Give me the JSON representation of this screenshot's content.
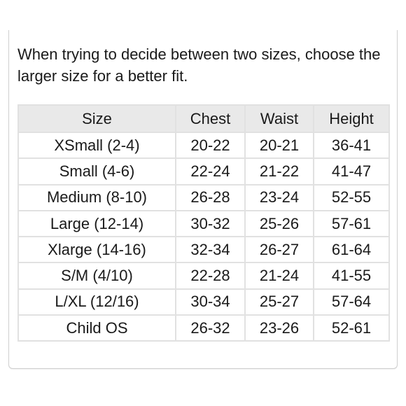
{
  "intro_text": "When trying to decide between two sizes, choose the larger size for a better fit.",
  "table": {
    "headers": [
      "Size",
      "Chest",
      "Waist",
      "Height"
    ],
    "rows": [
      [
        "XSmall (2-4)",
        "20-22",
        "20-21",
        "36-41"
      ],
      [
        "Small (4-6)",
        "22-24",
        "21-22",
        "41-47"
      ],
      [
        "Medium (8-10)",
        "26-28",
        "23-24",
        "52-55"
      ],
      [
        "Large (12-14)",
        "30-32",
        "25-26",
        "57-61"
      ],
      [
        "Xlarge (14-16)",
        "32-34",
        "26-27",
        "61-64"
      ],
      [
        "S/M (4/10)",
        "22-28",
        "21-24",
        "41-55"
      ],
      [
        "L/XL (12/16)",
        "30-34",
        "25-27",
        "57-64"
      ],
      [
        "Child OS",
        "26-32",
        "23-26",
        "52-61"
      ]
    ]
  },
  "colors": {
    "header_background": "#e9e9e9",
    "border": "#e1e1e1",
    "text": "#1a1a1a"
  }
}
